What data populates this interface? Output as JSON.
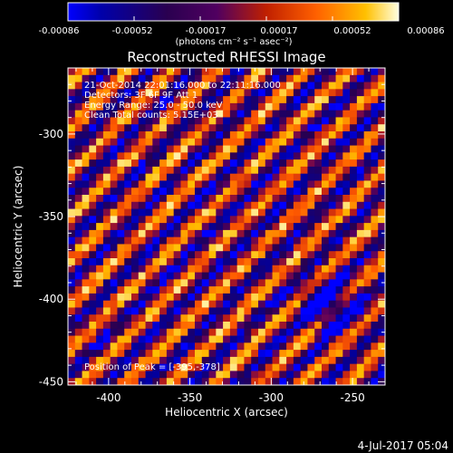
{
  "colorbar": {
    "tick_labels": [
      "-0.00086",
      "-0.00052",
      "-0.00017",
      "0.00017",
      "0.00052",
      "0.00086"
    ],
    "units": "(photons cm⁻² s⁻¹ asec⁻²)"
  },
  "title": "Reconstructed RHESSI Image",
  "annotations": [
    "21-Oct-2014 22:01:16.000 to 22:11:16.000",
    "Detectors: 3F 6F 9F  Att 1",
    "Energy Range: 25.0 - 50.0 keV",
    "Clean    Total counts: 5.15E+03"
  ],
  "peak_label": "Position of Peak = [-395,-378]",
  "axes": {
    "xlabel": "Heliocentric X (arcsec)",
    "ylabel": "Heliocentric Y (arcsec)",
    "x_ticks": [
      "-400",
      "-350",
      "-300",
      "-250"
    ],
    "x_tick_values": [
      -400,
      -350,
      -300,
      -250
    ],
    "y_ticks": [
      "-300",
      "-350",
      "-400",
      "-450"
    ],
    "y_tick_values": [
      -300,
      -350,
      -400,
      -450
    ],
    "xlim": [
      -425,
      -230
    ],
    "ylim": [
      -452,
      -260
    ]
  },
  "footer_date": "4-Jul-2017 05:04",
  "image_grid": {
    "cols": 45,
    "rows": 45
  }
}
